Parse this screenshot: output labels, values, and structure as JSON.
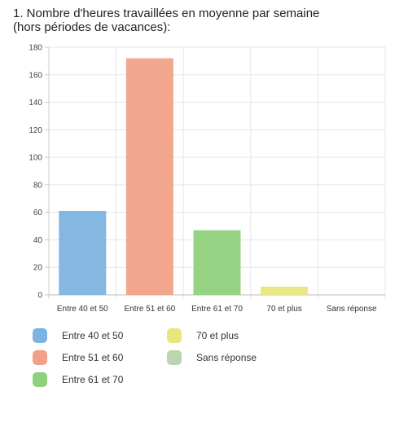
{
  "chart_data": {
    "type": "bar",
    "title_lines": [
      "1. Nombre d'heures travaillées en moyenne par semaine",
      "(hors périodes de vacances):"
    ],
    "categories": [
      "Entre 40 et 50",
      "Entre 51 et 60",
      "Entre 61 et 70",
      "70 et plus",
      "Sans réponse"
    ],
    "values": [
      61,
      172,
      47,
      6,
      0
    ],
    "colors": [
      "#7db3e0",
      "#f0a187",
      "#90d17e",
      "#e8e77e",
      "#b9d6b0"
    ],
    "ylim": [
      0,
      180
    ],
    "yticks": [
      0,
      20,
      40,
      60,
      80,
      100,
      120,
      140,
      160,
      180
    ],
    "grid": true,
    "legend_position": "bottom"
  }
}
